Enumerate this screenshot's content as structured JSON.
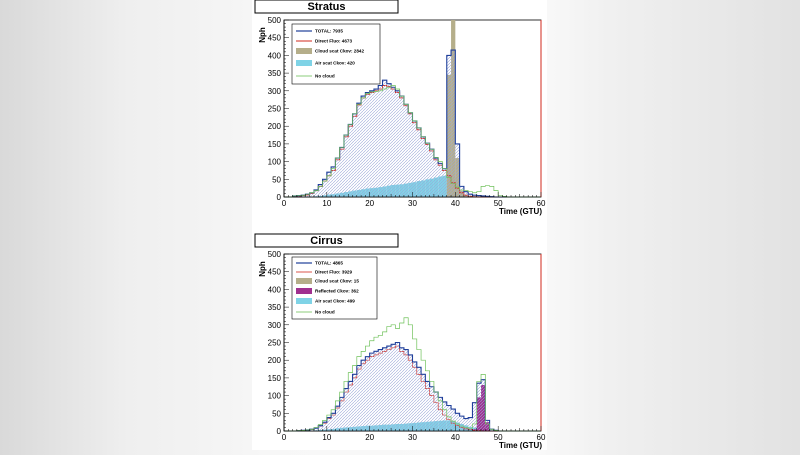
{
  "colors": {
    "total": "#1f3f9a",
    "direct": "#d22a1e",
    "cloud": "#b5ae8a",
    "air": "#7fd3e6",
    "reflected": "#a0308f",
    "nocloud": "#6fc15a",
    "hatch": "#9aa6d8"
  },
  "chart_data": [
    {
      "type": "histogram",
      "title": "Stratus",
      "xlabel": "Time  (GTU)",
      "ylabel": "Nph",
      "xlim": [
        0,
        60
      ],
      "ylim": [
        0,
        500
      ],
      "x_ticks": [
        0,
        10,
        20,
        30,
        40,
        50,
        60
      ],
      "y_ticks": [
        0,
        50,
        100,
        150,
        200,
        250,
        300,
        350,
        400,
        450,
        500
      ],
      "bin_width": 1,
      "legend": [
        {
          "key": "total",
          "label": "TOTAL: 7935"
        },
        {
          "key": "direct",
          "label": "Direct Fluo: 4673"
        },
        {
          "key": "cloud",
          "label": "Cloud scat Ckov: 2842"
        },
        {
          "key": "air",
          "label": "Air scat Ckov: 420"
        },
        {
          "key": "nocloud",
          "label": "No cloud"
        }
      ],
      "series": [
        {
          "key": "nocloud",
          "name": "No cloud",
          "values": [
            0,
            0,
            3,
            4,
            5,
            8,
            12,
            18,
            30,
            45,
            60,
            80,
            110,
            140,
            175,
            205,
            235,
            262,
            280,
            292,
            297,
            298,
            300,
            305,
            310,
            315,
            305,
            285,
            262,
            238,
            215,
            195,
            170,
            152,
            135,
            112,
            100,
            80,
            55,
            38,
            28,
            20,
            18,
            15,
            12,
            15,
            30,
            32,
            30,
            18,
            4,
            2,
            0,
            0,
            0,
            0,
            0,
            0,
            0,
            0
          ]
        },
        {
          "key": "total",
          "name": "TOTAL",
          "values": [
            0,
            0,
            3,
            4,
            5,
            8,
            12,
            20,
            35,
            50,
            70,
            85,
            110,
            140,
            175,
            205,
            235,
            265,
            285,
            295,
            300,
            305,
            315,
            330,
            320,
            310,
            300,
            285,
            262,
            238,
            215,
            195,
            170,
            152,
            135,
            110,
            95,
            80,
            400,
            415,
            150,
            30,
            15,
            8,
            5,
            4,
            3,
            2,
            1,
            0,
            0,
            0,
            0,
            0,
            0,
            0,
            0,
            0,
            0,
            0
          ]
        },
        {
          "key": "direct",
          "name": "Direct Fluo",
          "values": [
            0,
            0,
            2,
            3,
            4,
            6,
            10,
            18,
            30,
            45,
            60,
            75,
            105,
            135,
            170,
            200,
            228,
            260,
            280,
            290,
            295,
            300,
            305,
            315,
            312,
            305,
            295,
            280,
            258,
            235,
            210,
            190,
            165,
            148,
            130,
            105,
            90,
            75,
            60,
            40,
            25,
            12,
            5,
            2,
            1,
            0,
            0,
            0,
            0,
            0,
            0,
            0,
            0,
            0,
            0,
            0,
            0,
            0,
            0,
            0
          ]
        },
        {
          "key": "cloud",
          "name": "Cloud scat Ckov",
          "values": [
            0,
            0,
            0,
            0,
            0,
            0,
            0,
            0,
            0,
            0,
            0,
            0,
            0,
            0,
            0,
            0,
            0,
            0,
            0,
            0,
            0,
            0,
            0,
            0,
            0,
            0,
            0,
            0,
            0,
            0,
            0,
            0,
            0,
            0,
            0,
            0,
            0,
            0,
            345,
            500,
            110,
            18,
            6,
            3,
            1,
            0,
            0,
            0,
            0,
            0,
            0,
            0,
            0,
            0,
            0,
            0,
            0,
            0,
            0,
            0
          ]
        },
        {
          "key": "air",
          "name": "Air scat Ckov",
          "values": [
            0,
            0,
            0,
            0,
            0,
            1,
            1,
            2,
            3,
            5,
            7,
            8,
            10,
            12,
            14,
            16,
            18,
            20,
            22,
            24,
            25,
            26,
            28,
            30,
            32,
            34,
            35,
            36,
            38,
            40,
            42,
            45,
            47,
            50,
            52,
            55,
            58,
            60,
            62,
            55,
            35,
            12,
            4,
            2,
            1,
            0,
            0,
            0,
            0,
            0,
            0,
            0,
            0,
            0,
            0,
            0,
            0,
            0,
            0,
            0
          ]
        }
      ]
    },
    {
      "type": "histogram",
      "title": "Cirrus",
      "xlabel": "Time  (GTU)",
      "ylabel": "Nph",
      "xlim": [
        0,
        60
      ],
      "ylim": [
        0,
        500
      ],
      "x_ticks": [
        0,
        10,
        20,
        30,
        40,
        50,
        60
      ],
      "y_ticks": [
        0,
        50,
        100,
        150,
        200,
        250,
        300,
        350,
        400,
        450,
        500
      ],
      "bin_width": 1,
      "legend": [
        {
          "key": "total",
          "label": "TOTAL: 4865"
        },
        {
          "key": "direct",
          "label": "Direct Fluo: 3929"
        },
        {
          "key": "cloud",
          "label": "Cloud scat Ckov: 15"
        },
        {
          "key": "reflected",
          "label": "Reflected Ckov: 362"
        },
        {
          "key": "air",
          "label": "Air scat Ckov: 499"
        },
        {
          "key": "nocloud",
          "label": "No cloud"
        }
      ],
      "series": [
        {
          "key": "nocloud",
          "name": "No cloud",
          "values": [
            0,
            0,
            0,
            1,
            2,
            3,
            5,
            10,
            18,
            30,
            45,
            60,
            85,
            110,
            140,
            165,
            185,
            210,
            225,
            240,
            255,
            265,
            270,
            280,
            295,
            300,
            290,
            305,
            320,
            300,
            260,
            230,
            200,
            170,
            140,
            110,
            85,
            60,
            40,
            28,
            20,
            14,
            10,
            8,
            20,
            140,
            160,
            20,
            5,
            2,
            0,
            0,
            0,
            0,
            0,
            0,
            0,
            0,
            0,
            0
          ]
        },
        {
          "key": "total",
          "name": "TOTAL",
          "values": [
            0,
            0,
            0,
            1,
            2,
            3,
            5,
            8,
            15,
            25,
            38,
            50,
            70,
            95,
            120,
            140,
            160,
            185,
            200,
            210,
            220,
            225,
            230,
            235,
            240,
            245,
            250,
            235,
            230,
            215,
            195,
            180,
            160,
            140,
            125,
            110,
            95,
            82,
            72,
            62,
            50,
            42,
            35,
            38,
            80,
            135,
            145,
            30,
            5,
            2,
            0,
            0,
            0,
            0,
            0,
            0,
            0,
            0,
            0,
            0
          ]
        },
        {
          "key": "direct",
          "name": "Direct Fluo",
          "values": [
            0,
            0,
            0,
            1,
            2,
            3,
            4,
            8,
            14,
            22,
            35,
            45,
            65,
            85,
            110,
            130,
            150,
            175,
            190,
            200,
            210,
            215,
            220,
            225,
            230,
            235,
            240,
            225,
            215,
            200,
            180,
            160,
            140,
            120,
            100,
            80,
            60,
            45,
            32,
            22,
            15,
            10,
            6,
            4,
            2,
            1,
            0,
            0,
            0,
            0,
            0,
            0,
            0,
            0,
            0,
            0,
            0,
            0,
            0,
            0
          ]
        },
        {
          "key": "reflected",
          "name": "Reflected Ckov",
          "values": [
            0,
            0,
            0,
            0,
            0,
            0,
            0,
            0,
            0,
            0,
            0,
            0,
            0,
            0,
            0,
            0,
            0,
            0,
            0,
            0,
            0,
            0,
            0,
            0,
            0,
            0,
            0,
            0,
            0,
            0,
            0,
            0,
            0,
            0,
            0,
            0,
            0,
            0,
            0,
            0,
            0,
            0,
            0,
            0,
            5,
            95,
            130,
            25,
            0,
            0,
            0,
            0,
            0,
            0,
            0,
            0,
            0,
            0,
            0,
            0
          ]
        },
        {
          "key": "cloud",
          "name": "Cloud scat Ckov",
          "values": [
            0,
            0,
            0,
            0,
            0,
            0,
            0,
            0,
            0,
            0,
            0,
            0,
            0,
            0,
            0,
            0,
            0,
            0,
            0,
            0,
            0,
            0,
            0,
            0,
            0,
            0,
            0,
            0,
            0,
            0,
            0,
            0,
            0,
            0,
            0,
            0,
            0,
            0,
            0,
            0,
            0,
            0,
            0,
            0,
            1,
            4,
            6,
            3,
            1,
            0,
            0,
            0,
            0,
            0,
            0,
            0,
            0,
            0,
            0,
            0
          ]
        },
        {
          "key": "air",
          "name": "Air scat Ckov",
          "values": [
            0,
            0,
            0,
            0,
            0,
            0,
            1,
            2,
            3,
            4,
            5,
            6,
            8,
            9,
            10,
            11,
            12,
            13,
            14,
            15,
            15,
            16,
            17,
            18,
            18,
            19,
            20,
            20,
            21,
            22,
            23,
            24,
            25,
            26,
            27,
            28,
            29,
            30,
            30,
            28,
            24,
            20,
            16,
            12,
            10,
            8,
            6,
            4,
            2,
            1,
            0,
            0,
            0,
            0,
            0,
            0,
            0,
            0,
            0,
            0
          ]
        }
      ]
    }
  ]
}
